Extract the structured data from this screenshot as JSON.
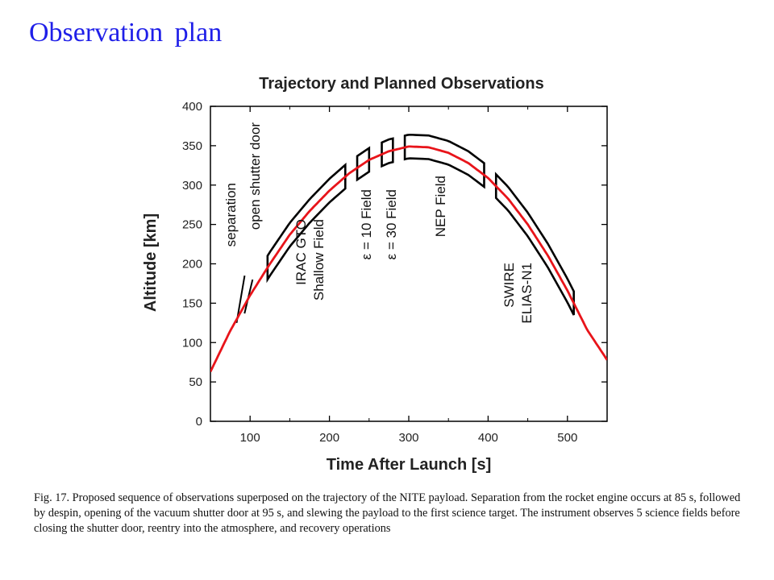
{
  "slide": {
    "title": "Observation plan",
    "caption": "Fig. 17.  Proposed sequence of observations superposed on the trajectory of the NITE payload.  Separation from the rocket engine occurs at 85 s, followed by despin, opening of the vacuum shutter door at 95 s, and slewing the payload to the first science target.  The instrument observes 5 science fields before closing the shutter door, reentry into the atmosphere, and recovery operations"
  },
  "chart_data": {
    "type": "line",
    "title": "Trajectory and Planned Observations",
    "xlabel": "Time After Launch [s]",
    "ylabel": "Altitude [km]",
    "xlim": [
      50,
      550
    ],
    "ylim": [
      0,
      400
    ],
    "xticks": [
      100,
      200,
      300,
      400,
      500
    ],
    "yticks": [
      0,
      50,
      100,
      150,
      200,
      250,
      300,
      350,
      400
    ],
    "grid": false,
    "trajectory": {
      "color": "#e8141a",
      "x": [
        50,
        75,
        100,
        125,
        150,
        175,
        200,
        225,
        250,
        275,
        300,
        325,
        350,
        375,
        400,
        425,
        450,
        475,
        500,
        525,
        550
      ],
      "y": [
        63,
        115,
        160,
        200,
        237,
        267,
        293,
        315,
        332,
        343,
        349,
        348,
        341,
        328,
        309,
        283,
        250,
        211,
        166,
        116,
        78
      ]
    },
    "events": [
      {
        "label": "separation",
        "time": 85,
        "altitude_top": 185,
        "altitude_bottom": 125
      },
      {
        "label": "open shutter door",
        "time": 95,
        "altitude_top": 180,
        "altitude_bottom": 137
      }
    ],
    "fields": [
      {
        "label_lines": [
          "IRAC GTO",
          "Shallow Field"
        ],
        "t_start": 122,
        "t_end": 220
      },
      {
        "label_lines": [
          "ε = 10 Field"
        ],
        "t_start": 235,
        "t_end": 250
      },
      {
        "label_lines": [
          "ε = 30 Field"
        ],
        "t_start": 266,
        "t_end": 280
      },
      {
        "label_lines": [
          "NEP Field"
        ],
        "t_start": 295,
        "t_end": 395
      },
      {
        "label_lines": [
          "SWIRE",
          "ELIAS-N1"
        ],
        "t_start": 410,
        "t_end": 508
      }
    ],
    "band_halfwidth_km": 15,
    "text_color": "#000000",
    "band_color": "#000000"
  }
}
